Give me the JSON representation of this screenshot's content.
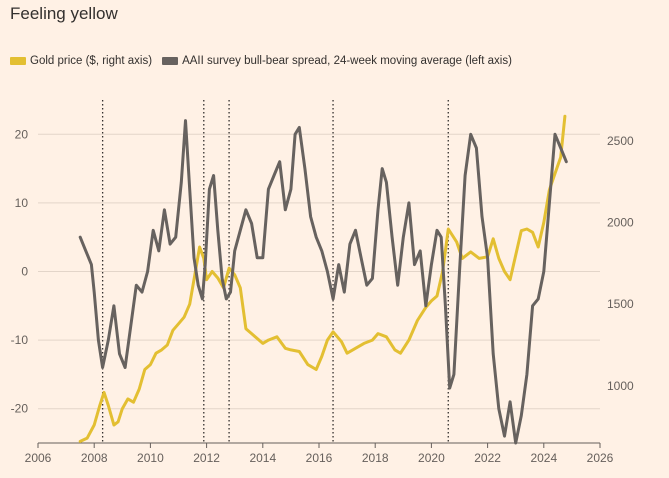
{
  "title": "Feeling yellow",
  "chart_data": {
    "type": "line",
    "title": "Feeling yellow",
    "x_ticks": [
      "2006",
      "2008",
      "2010",
      "2012",
      "2014",
      "2016",
      "2018",
      "2020",
      "2022",
      "2024",
      "2026"
    ],
    "xlim": [
      2006,
      2026
    ],
    "y_left": {
      "lim": [
        -25,
        25
      ],
      "ticks": [
        "-20",
        "-10",
        "0",
        "10",
        "20"
      ],
      "tick_values": [
        -20,
        -10,
        0,
        10,
        20
      ]
    },
    "y_right": {
      "lim": [
        650,
        2750
      ],
      "ticks": [
        "1000",
        "1500",
        "2000",
        "2500"
      ],
      "tick_values": [
        1000,
        1500,
        2000,
        2500
      ]
    },
    "vlines": [
      2008.3,
      2011.9,
      2012.8,
      2016.5,
      2020.6
    ],
    "grid": "horizontal",
    "legend_position": "top-left",
    "series": [
      {
        "name": "Gold price ($, right axis)",
        "axis": "right",
        "color": "#e3bf32",
        "x": [
          2007.5,
          2007.75,
          2008.0,
          2008.2,
          2008.35,
          2008.5,
          2008.7,
          2008.85,
          2009.0,
          2009.2,
          2009.4,
          2009.6,
          2009.8,
          2010.0,
          2010.2,
          2010.4,
          2010.6,
          2010.8,
          2011.0,
          2011.2,
          2011.4,
          2011.6,
          2011.75,
          2011.9,
          2012.0,
          2012.2,
          2012.4,
          2012.6,
          2012.8,
          2013.0,
          2013.2,
          2013.4,
          2013.6,
          2013.8,
          2014.0,
          2014.2,
          2014.5,
          2014.8,
          2015.0,
          2015.3,
          2015.6,
          2015.9,
          2016.1,
          2016.3,
          2016.5,
          2016.8,
          2017.0,
          2017.3,
          2017.6,
          2017.9,
          2018.1,
          2018.4,
          2018.7,
          2018.9,
          2019.2,
          2019.5,
          2019.8,
          2020.0,
          2020.2,
          2020.4,
          2020.6,
          2020.9,
          2021.1,
          2021.4,
          2021.7,
          2022.0,
          2022.2,
          2022.4,
          2022.6,
          2022.8,
          2023.0,
          2023.2,
          2023.4,
          2023.6,
          2023.8,
          2024.0,
          2024.2,
          2024.4,
          2024.6,
          2024.75
        ],
        "values": [
          660,
          680,
          760,
          880,
          960,
          880,
          760,
          780,
          860,
          920,
          900,
          980,
          1100,
          1130,
          1200,
          1220,
          1250,
          1340,
          1380,
          1420,
          1500,
          1700,
          1850,
          1780,
          1650,
          1700,
          1660,
          1600,
          1720,
          1680,
          1600,
          1350,
          1320,
          1290,
          1260,
          1280,
          1300,
          1230,
          1220,
          1210,
          1130,
          1100,
          1180,
          1280,
          1330,
          1270,
          1200,
          1230,
          1260,
          1280,
          1320,
          1300,
          1220,
          1200,
          1280,
          1400,
          1480,
          1520,
          1550,
          1700,
          1960,
          1880,
          1780,
          1820,
          1780,
          1790,
          1900,
          1780,
          1700,
          1650,
          1800,
          1950,
          1960,
          1940,
          1850,
          2000,
          2200,
          2300,
          2400,
          2650
        ]
      },
      {
        "name": "AAII survey bull-bear spread, 24-week moving average (left axis)",
        "axis": "left",
        "color": "#67625f",
        "x": [
          2007.5,
          2007.7,
          2007.9,
          2008.0,
          2008.15,
          2008.3,
          2008.5,
          2008.7,
          2008.9,
          2009.1,
          2009.3,
          2009.5,
          2009.7,
          2009.9,
          2010.1,
          2010.3,
          2010.5,
          2010.7,
          2010.9,
          2011.1,
          2011.25,
          2011.4,
          2011.55,
          2011.7,
          2011.85,
          2011.95,
          2012.1,
          2012.25,
          2012.4,
          2012.55,
          2012.7,
          2012.85,
          2013.0,
          2013.2,
          2013.4,
          2013.6,
          2013.8,
          2014.0,
          2014.2,
          2014.4,
          2014.6,
          2014.8,
          2015.0,
          2015.15,
          2015.3,
          2015.5,
          2015.7,
          2015.9,
          2016.1,
          2016.3,
          2016.5,
          2016.7,
          2016.9,
          2017.1,
          2017.3,
          2017.5,
          2017.7,
          2017.9,
          2018.1,
          2018.25,
          2018.4,
          2018.6,
          2018.8,
          2019.0,
          2019.2,
          2019.4,
          2019.6,
          2019.8,
          2020.0,
          2020.2,
          2020.35,
          2020.5,
          2020.65,
          2020.8,
          2021.0,
          2021.2,
          2021.4,
          2021.6,
          2021.8,
          2022.0,
          2022.2,
          2022.4,
          2022.6,
          2022.8,
          2023.0,
          2023.2,
          2023.4,
          2023.6,
          2023.8,
          2024.0,
          2024.2,
          2024.4,
          2024.6,
          2024.8
        ],
        "values": [
          5,
          3,
          1,
          -3,
          -10,
          -14,
          -10,
          -5,
          -12,
          -14,
          -8,
          -2,
          -3,
          0,
          6,
          3,
          9,
          4,
          5,
          13,
          22,
          12,
          2,
          -2,
          -4,
          1,
          12,
          14,
          6,
          -1,
          -4,
          -3,
          3,
          6,
          9,
          7,
          2,
          2,
          12,
          14,
          16,
          9,
          12,
          20,
          21,
          15,
          8,
          5,
          3,
          0,
          -4,
          1,
          -3,
          4,
          6,
          2,
          -2,
          -1,
          9,
          15,
          13,
          5,
          -2,
          5,
          10,
          1,
          3,
          -5,
          1,
          6,
          5,
          -5,
          -17,
          -15,
          0,
          14,
          20,
          18,
          8,
          2,
          -12,
          -20,
          -24,
          -19,
          -25,
          -21,
          -15,
          -5,
          -4,
          0,
          10,
          20,
          18,
          16
        ]
      }
    ]
  }
}
